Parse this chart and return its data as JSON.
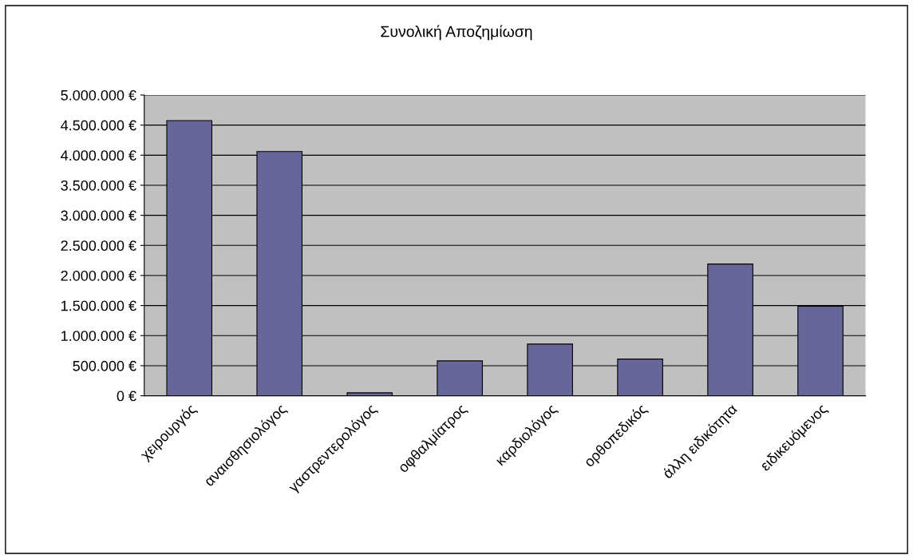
{
  "chart_data": {
    "type": "bar",
    "title": "Συνολική Αποζημίωση",
    "categories": [
      "χειρουργός",
      "αναισθησιολόγος",
      "γαστρεντερολόγος",
      "οφθαλμίατρος",
      "καρδιολόγος",
      "ορθοπεδικός",
      "άλλη ειδικότητα",
      "ειδικευόμενος"
    ],
    "values": [
      4575000,
      4060000,
      50000,
      580000,
      860000,
      610000,
      2190000,
      1490000
    ],
    "color": "#666699",
    "ylim": [
      0,
      5000000
    ],
    "yticks": [
      {
        "value": 0,
        "label": "0 €"
      },
      {
        "value": 500000,
        "label": "500.000 €"
      },
      {
        "value": 1000000,
        "label": "1.000.000 €"
      },
      {
        "value": 1500000,
        "label": "1.500.000 €"
      },
      {
        "value": 2000000,
        "label": "2.000.000 €"
      },
      {
        "value": 2500000,
        "label": "2.500.000 €"
      },
      {
        "value": 3000000,
        "label": "3.000.000 €"
      },
      {
        "value": 3500000,
        "label": "3.500.000 €"
      },
      {
        "value": 4000000,
        "label": "4.000.000 €"
      },
      {
        "value": 4500000,
        "label": "4.500.000 €"
      },
      {
        "value": 5000000,
        "label": "5.000.000 €"
      }
    ],
    "grid": "y",
    "legend": false
  }
}
